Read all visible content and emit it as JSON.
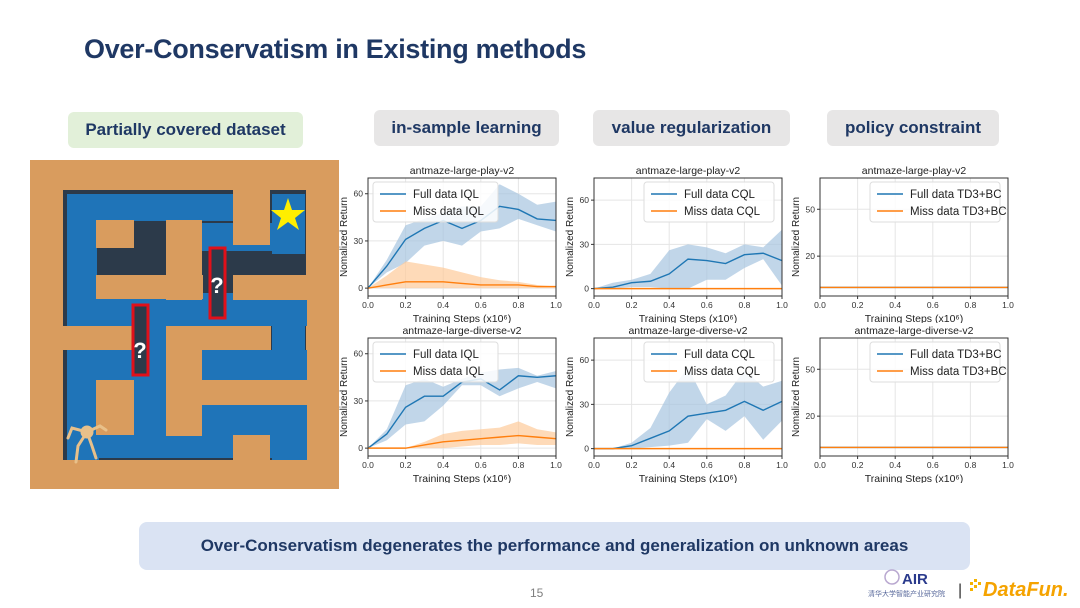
{
  "slide": {
    "title": "Over-Conservatism in Existing methods",
    "tags": [
      "Partially covered dataset",
      "in-sample learning",
      "value regularization",
      "policy constraint"
    ],
    "conclusion": "Over-Conservatism degenerates the performance and generalization on unknown areas",
    "page_number": "15",
    "maze_marks": [
      "?",
      "?"
    ],
    "logos": {
      "air": "AIR",
      "air_sub": "清华大学智能产业研究院",
      "divider": "|",
      "datafun": "DataFun."
    }
  },
  "colors": {
    "title": "#1f3864",
    "full": "#1f77b4",
    "miss": "#ff7f0e",
    "full_band": "#a6c4e0",
    "miss_band": "#fdcb9a"
  },
  "chart_data": [
    {
      "type": "line",
      "title": "antmaze-large-play-v2",
      "xlabel": "Training Steps (x10⁶)",
      "ylabel": "Nomalized Return",
      "xlim": [
        0,
        1.0
      ],
      "ylim": [
        -5,
        70
      ],
      "yticks": [
        0,
        30,
        60
      ],
      "xticks": [
        0.0,
        0.2,
        0.4,
        0.6,
        0.8,
        1.0
      ],
      "grid": true,
      "legend": "top-left",
      "x": [
        0,
        0.1,
        0.2,
        0.3,
        0.4,
        0.5,
        0.6,
        0.7,
        0.8,
        0.9,
        1.0
      ],
      "series": [
        {
          "name": "Full data IQL",
          "values": [
            0,
            14,
            31,
            38,
            43,
            38,
            43,
            52,
            50,
            44,
            43
          ],
          "lower": [
            0,
            10,
            16,
            27,
            30,
            27,
            36,
            38,
            44,
            40,
            36
          ],
          "upper": [
            0,
            18,
            40,
            44,
            48,
            52,
            52,
            66,
            60,
            53,
            55
          ]
        },
        {
          "name": "Miss data IQL",
          "values": [
            0,
            2,
            4,
            4,
            4,
            3,
            2,
            2,
            2,
            1,
            1
          ],
          "lower": [
            0,
            0,
            0,
            0,
            0,
            0,
            0,
            0,
            0,
            0,
            0
          ],
          "upper": [
            0,
            8,
            17,
            15,
            13,
            10,
            7,
            5,
            4,
            2,
            1
          ]
        }
      ]
    },
    {
      "type": "line",
      "title": "antmaze-large-play-v2",
      "xlabel": "Training Steps (x10⁶)",
      "ylabel": "Nomalized Return",
      "xlim": [
        0,
        1.0
      ],
      "ylim": [
        -5,
        75
      ],
      "yticks": [
        0,
        30,
        60
      ],
      "xticks": [
        0.0,
        0.2,
        0.4,
        0.6,
        0.8,
        1.0
      ],
      "grid": true,
      "legend": "top-right",
      "x": [
        0,
        0.1,
        0.2,
        0.3,
        0.4,
        0.5,
        0.6,
        0.7,
        0.8,
        0.9,
        1.0
      ],
      "series": [
        {
          "name": "Full data CQL",
          "values": [
            0,
            1,
            4,
            5,
            10,
            20,
            19,
            17,
            23,
            24,
            19
          ],
          "lower": [
            0,
            0,
            1,
            1,
            0,
            0,
            6,
            6,
            14,
            20,
            2
          ],
          "upper": [
            0,
            4,
            6,
            10,
            26,
            30,
            28,
            24,
            30,
            28,
            40
          ]
        },
        {
          "name": "Miss data CQL",
          "values": [
            0,
            0,
            0,
            0,
            0,
            0,
            0,
            0,
            0,
            0,
            0
          ],
          "lower": [
            0,
            0,
            0,
            0,
            0,
            0,
            0,
            0,
            0,
            0,
            0
          ],
          "upper": [
            0,
            0,
            0,
            0,
            0,
            0,
            0,
            0,
            0,
            0,
            0
          ]
        }
      ]
    },
    {
      "type": "line",
      "title": "antmaze-large-play-v2",
      "xlabel": "Training Steps (x10⁶)",
      "ylabel": "Nomalized Return",
      "xlim": [
        0,
        1.0
      ],
      "ylim": [
        -5.5,
        70
      ],
      "yticks": [
        20,
        50
      ],
      "xticks": [
        0.0,
        0.2,
        0.4,
        0.6,
        0.8,
        1.0
      ],
      "grid": true,
      "legend": "top-right",
      "x": [
        0,
        1.0
      ],
      "series": [
        {
          "name": "Full data TD3+BC",
          "values": [
            0,
            0
          ],
          "lower": [
            0,
            0
          ],
          "upper": [
            0,
            0
          ]
        },
        {
          "name": "Miss data TD3+BC",
          "values": [
            0,
            0
          ],
          "lower": [
            0,
            0
          ],
          "upper": [
            0,
            0
          ]
        }
      ]
    },
    {
      "type": "line",
      "title": "antmaze-large-diverse-v2",
      "xlabel": "Training Steps (x10⁶)",
      "ylabel": "Nomalized Return",
      "xlim": [
        0,
        1.0
      ],
      "ylim": [
        -5,
        70
      ],
      "yticks": [
        0,
        30,
        60
      ],
      "xticks": [
        0.0,
        0.2,
        0.4,
        0.6,
        0.8,
        1.0
      ],
      "grid": true,
      "legend": "top-left",
      "x": [
        0,
        0.1,
        0.2,
        0.3,
        0.4,
        0.5,
        0.6,
        0.7,
        0.8,
        0.9,
        1.0
      ],
      "series": [
        {
          "name": "Full data IQL",
          "values": [
            0,
            9,
            26,
            33,
            33,
            42,
            44,
            37,
            46,
            45,
            46
          ],
          "lower": [
            0,
            5,
            15,
            17,
            27,
            40,
            40,
            33,
            38,
            42,
            38
          ],
          "upper": [
            0,
            12,
            40,
            44,
            39,
            44,
            48,
            50,
            51,
            46,
            49
          ]
        },
        {
          "name": "Miss data IQL",
          "values": [
            0,
            0,
            0,
            2,
            4,
            5,
            6,
            7,
            8,
            7,
            6
          ],
          "lower": [
            0,
            0,
            0,
            0,
            0,
            1,
            2,
            2,
            3,
            2,
            2
          ],
          "upper": [
            0,
            0,
            0,
            4,
            9,
            11,
            12,
            13,
            17,
            12,
            10
          ]
        }
      ]
    },
    {
      "type": "line",
      "title": "antmaze-large-diverse-v2",
      "xlabel": "Training Steps (x10⁶)",
      "ylabel": "Nomalized Return",
      "xlim": [
        0,
        1.0
      ],
      "ylim": [
        -5,
        75
      ],
      "yticks": [
        0,
        30,
        60
      ],
      "xticks": [
        0.0,
        0.2,
        0.4,
        0.6,
        0.8,
        1.0
      ],
      "grid": true,
      "legend": "top-right",
      "x": [
        0,
        0.1,
        0.2,
        0.3,
        0.4,
        0.5,
        0.6,
        0.7,
        0.8,
        0.9,
        1.0
      ],
      "series": [
        {
          "name": "Full data CQL",
          "values": [
            0,
            0,
            2,
            7,
            12,
            22,
            24,
            26,
            32,
            26,
            32
          ],
          "lower": [
            0,
            0,
            0,
            1,
            2,
            4,
            20,
            12,
            22,
            6,
            19
          ],
          "upper": [
            0,
            0,
            4,
            14,
            38,
            55,
            30,
            36,
            53,
            42,
            46
          ]
        },
        {
          "name": "Miss data CQL",
          "values": [
            0,
            0,
            0,
            0,
            0,
            0,
            0,
            0,
            0,
            0,
            0
          ],
          "lower": [
            0,
            0,
            0,
            0,
            0,
            0,
            0,
            0,
            0,
            0,
            0
          ],
          "upper": [
            0,
            0,
            0,
            0,
            0,
            0,
            0,
            0,
            0,
            0,
            0
          ]
        }
      ]
    },
    {
      "type": "line",
      "title": "antmaze-large-diverse-v2",
      "xlabel": "Training Steps (x10⁶)",
      "ylabel": "Nomalized Return",
      "xlim": [
        0,
        1.0
      ],
      "ylim": [
        -5.5,
        70
      ],
      "yticks": [
        20,
        50
      ],
      "xticks": [
        0.0,
        0.2,
        0.4,
        0.6,
        0.8,
        1.0
      ],
      "grid": true,
      "legend": "top-right",
      "x": [
        0,
        1.0
      ],
      "series": [
        {
          "name": "Full data TD3+BC",
          "values": [
            0,
            0
          ],
          "lower": [
            0,
            0
          ],
          "upper": [
            0,
            0
          ]
        },
        {
          "name": "Miss data TD3+BC",
          "values": [
            0,
            0
          ],
          "lower": [
            0,
            0
          ],
          "upper": [
            0,
            0
          ]
        }
      ]
    }
  ]
}
